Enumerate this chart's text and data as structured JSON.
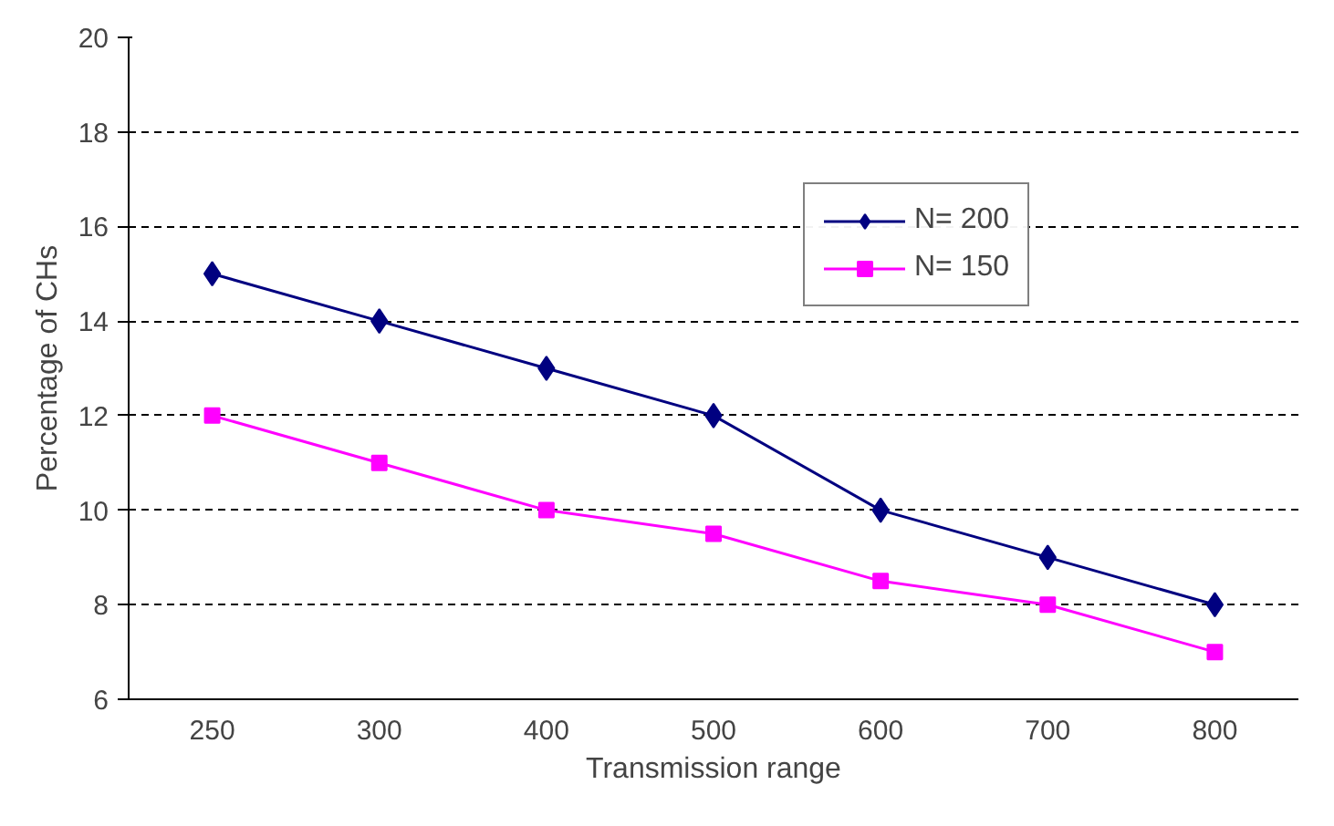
{
  "chart_data": {
    "type": "line",
    "xlabel": "Transmission range",
    "ylabel": "Percentage of CHs",
    "categories": [
      "250",
      "300",
      "400",
      "500",
      "600",
      "700",
      "800"
    ],
    "series": [
      {
        "name": "N= 200",
        "color": "#000080",
        "marker": "diamond",
        "values": [
          15,
          14,
          13,
          12,
          10,
          9,
          8
        ]
      },
      {
        "name": "N= 150",
        "color": "#ff00ff",
        "marker": "square",
        "values": [
          12,
          11,
          10,
          9.5,
          8.5,
          8,
          7
        ]
      }
    ],
    "ylim": [
      6,
      20
    ],
    "yticks": [
      6,
      8,
      10,
      12,
      14,
      16,
      18,
      20
    ],
    "grid": "y",
    "legend": "top right",
    "line_style": "solid"
  }
}
